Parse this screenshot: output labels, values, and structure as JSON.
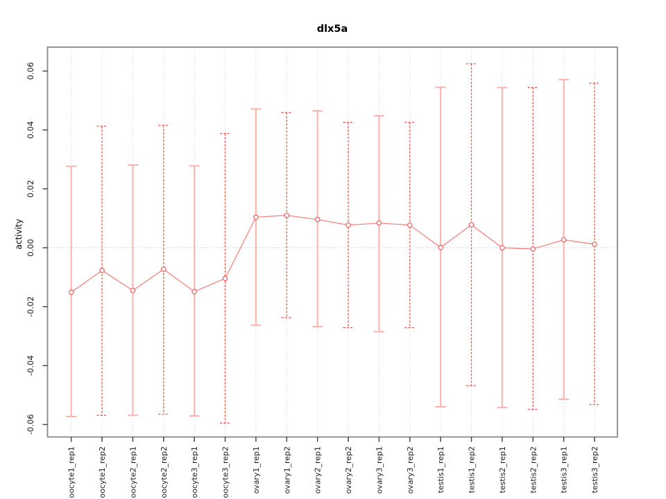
{
  "chart_data": {
    "type": "line",
    "title": "dlx5a",
    "xlabel": "",
    "ylabel": "activity",
    "categories": [
      "oocyte1_rep1",
      "oocyte1_rep2",
      "oocyte2_rep1",
      "oocyte2_rep2",
      "oocyte3_rep1",
      "oocyte3_rep2",
      "ovary1_rep1",
      "ovary1_rep2",
      "ovary2_rep1",
      "ovary2_rep2",
      "ovary3_rep1",
      "ovary3_rep2",
      "testis1_rep1",
      "testis1_rep2",
      "testis2_rep1",
      "testis2_rep2",
      "testis3_rep1",
      "testis3_rep2"
    ],
    "series": [
      {
        "name": "mean activity",
        "values": [
          -0.0151,
          -0.0077,
          -0.0145,
          -0.0073,
          -0.0149,
          -0.0104,
          0.0104,
          0.011,
          0.0096,
          0.0077,
          0.0084,
          0.0077,
          0.0001,
          0.0078,
          0.0,
          -0.0004,
          0.0027,
          0.0012
        ]
      }
    ],
    "error_upper": [
      0.0277,
      0.0413,
      0.0281,
      0.0416,
      0.0278,
      0.0388,
      0.0471,
      0.0459,
      0.0465,
      0.0426,
      0.0448,
      0.0426,
      0.0545,
      0.0625,
      0.0544,
      0.0544,
      0.0571,
      0.0559
    ],
    "error_lower": [
      -0.0573,
      -0.0569,
      -0.0569,
      -0.0565,
      -0.0571,
      -0.0595,
      -0.0263,
      -0.0237,
      -0.0268,
      -0.0271,
      -0.0285,
      -0.0271,
      -0.054,
      -0.0468,
      -0.0542,
      -0.0549,
      -0.0514,
      -0.0532
    ],
    "ylim": [
      -0.0643,
      0.0681
    ],
    "yticks": [
      {
        "value": 0.06,
        "label": "0.06"
      },
      {
        "value": 0.04,
        "label": "0.04"
      },
      {
        "value": 0.02,
        "label": "0.02"
      },
      {
        "value": 0.0,
        "label": "0.00"
      },
      {
        "value": -0.02,
        "label": "-0.02"
      },
      {
        "value": -0.04,
        "label": "-0.04"
      },
      {
        "value": -0.06,
        "label": "-0.06"
      }
    ],
    "grid": {
      "vertical_per_category": true,
      "zero_line": true,
      "style": "dotted"
    },
    "legend": "none",
    "marker": "open-circle",
    "colors": {
      "line": "#f87b7b",
      "marker_stroke": "#f55a5a",
      "errorbar_solid": "#ffb0ae",
      "errorbar_dashed": "#e9564f",
      "grid": "#d9d9d9",
      "zero_line": "#cfcfcf",
      "plot_border": "#888888",
      "tick": "#444444",
      "text": "#1a1a1a"
    }
  }
}
